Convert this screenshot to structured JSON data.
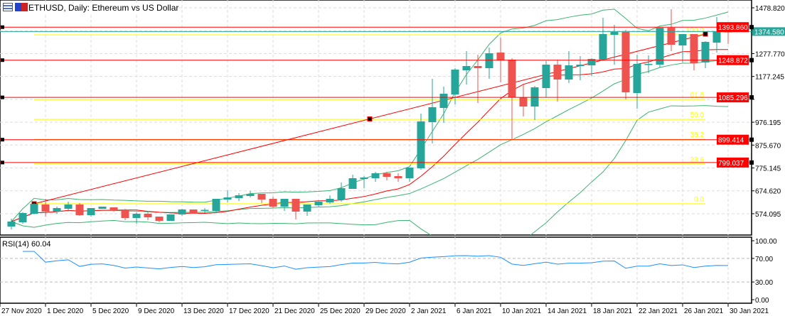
{
  "header": {
    "title": "ETHUSD, Daily:  Ethereum vs US Dollar"
  },
  "colors": {
    "bull": "#26a69a",
    "bear": "#ef5350",
    "hline": "#ff0000",
    "fib": "#ffff00",
    "bands": "#3cb371",
    "ma": "#ff0000",
    "rsi": "#1e90ff",
    "bid": "#26a69a"
  },
  "price_axis": {
    "labels": [
      "1478.820",
      "1277.770",
      "1177.245",
      "976.195",
      "875.670",
      "775.145",
      "674.620",
      "574.095"
    ],
    "grid": [
      1478.82,
      1377.995,
      1277.77,
      1177.245,
      1076.72,
      976.195,
      875.67,
      775.145,
      674.62,
      574.095
    ]
  },
  "horizontal_lines": [
    {
      "price": 1393.86,
      "label": "1393.860"
    },
    {
      "price": 1248.872,
      "label": "1248.872"
    },
    {
      "price": 1085.296,
      "label": "1085.296"
    },
    {
      "price": 899.414,
      "label": "899.414"
    },
    {
      "price": 799.037,
      "label": "799.037"
    }
  ],
  "bid_line": {
    "price": 1374.58,
    "label": "1374.580"
  },
  "fibonacci": {
    "start_bar": 3,
    "end_bar": 62,
    "low": 617.6,
    "high": 1360.0,
    "levels": [
      {
        "ratio": 1.0,
        "label": "100.0"
      },
      {
        "ratio": 0.618,
        "label": "61.8"
      },
      {
        "ratio": 0.5,
        "label": "50.0"
      },
      {
        "ratio": 0.382,
        "label": "38.2"
      },
      {
        "ratio": 0.236,
        "label": "23.6"
      },
      {
        "ratio": 0.0,
        "label": "0.0"
      }
    ]
  },
  "trendline": {
    "start": {
      "bar": 3,
      "price": 617.6
    },
    "end": {
      "bar": 62,
      "price": 1363.4
    }
  },
  "date_axis": {
    "labels": [
      "27 Nov 2020",
      "1 Dec 2020",
      "5 Dec 2020",
      "9 Dec 2020",
      "13 Dec 2020",
      "17 Dec 2020",
      "21 Dec 2020",
      "25 Dec 2020",
      "29 Dec 2020",
      "2 Jan 2021",
      "6 Jan 2021",
      "10 Jan 2021",
      "14 Jan 2021",
      "18 Jan 2021",
      "22 Jan 2021",
      "26 Jan 2021",
      "30 Jan 2021"
    ]
  },
  "rsi": {
    "title": "RSI(14) 60.04",
    "labels": [
      "100.00",
      "70.00",
      "30.00",
      "0.00"
    ],
    "levels": [
      100,
      70,
      30,
      0
    ]
  },
  "chart_data": {
    "type": "candlestick",
    "title": "ETHUSD, Daily: Ethereum vs US Dollar",
    "first_bar": "28 Nov 2020",
    "ylim": [
      574.095,
      1478.82
    ],
    "ohlc": [
      [
        517.8,
        552.1,
        505.3,
        539.7
      ],
      [
        536.5,
        580.2,
        530.3,
        577.1
      ],
      [
        574.0,
        620.8,
        570.9,
        617.6
      ],
      [
        614.5,
        639.5,
        561.5,
        583.3
      ],
      [
        583.3,
        605.2,
        574.0,
        598.9
      ],
      [
        595.8,
        627.0,
        583.3,
        614.5
      ],
      [
        614.5,
        620.8,
        564.6,
        567.7
      ],
      [
        567.7,
        598.9,
        561.5,
        598.9
      ],
      [
        595.8,
        605.2,
        595.8,
        605.2
      ],
      [
        602.1,
        602.1,
        583.3,
        589.6
      ],
      [
        592.7,
        595.8,
        545.9,
        555.3
      ],
      [
        555.3,
        580.2,
        530.3,
        574.0
      ],
      [
        574.0,
        580.2,
        545.9,
        558.4
      ],
      [
        561.5,
        561.5,
        536.5,
        542.8
      ],
      [
        542.8,
        570.9,
        542.8,
        570.9
      ],
      [
        570.9,
        595.8,
        564.6,
        592.7
      ],
      [
        592.7,
        592.7,
        574.0,
        574.0
      ],
      [
        589.6,
        598.9,
        577.1,
        591.0
      ],
      [
        586.5,
        639.5,
        577.1,
        639.5
      ],
      [
        636.4,
        676.9,
        623.9,
        645.7
      ],
      [
        642.6,
        664.5,
        630.1,
        655.1
      ],
      [
        652.0,
        673.8,
        645.7,
        661.3
      ],
      [
        661.3,
        661.3,
        620.8,
        636.4
      ],
      [
        639.5,
        648.9,
        598.9,
        605.2
      ],
      [
        605.2,
        639.5,
        586.5,
        639.5
      ],
      [
        639.5,
        639.5,
        549.0,
        583.3
      ],
      [
        583.3,
        614.5,
        564.6,
        614.5
      ],
      [
        611.4,
        633.2,
        605.2,
        627.0
      ],
      [
        623.9,
        655.1,
        617.6,
        639.5
      ],
      [
        636.4,
        711.3,
        627.0,
        686.3
      ],
      [
        683.2,
        745.6,
        683.2,
        730.0
      ],
      [
        726.9,
        739.4,
        686.3,
        733.1
      ],
      [
        730.0,
        758.1,
        714.4,
        751.9
      ],
      [
        751.9,
        758.1,
        720.6,
        736.2
      ],
      [
        739.4,
        751.9,
        714.4,
        730.0
      ],
      [
        730.0,
        776.8,
        714.4,
        776.8
      ],
      [
        773.7,
        1013.9,
        767.5,
        979.6
      ],
      [
        976.5,
        1166.8,
        882.9,
        1042.0
      ],
      [
        1038.9,
        1132.5,
        973.3,
        1101.3
      ],
      [
        1098.1,
        1213.6,
        1054.5,
        1207.3
      ],
      [
        1204.2,
        1288.5,
        1141.8,
        1222.9
      ],
      [
        1222.9,
        1272.9,
        1060.7,
        1213.6
      ],
      [
        1213.6,
        1304.1,
        1166.8,
        1279.1
      ],
      [
        1282.2,
        1347.8,
        1151.2,
        1247.9
      ],
      [
        1251.0,
        1257.3,
        901.6,
        1085.6
      ],
      [
        1085.6,
        1145.0,
        1001.4,
        1045.1
      ],
      [
        1045.1,
        1135.6,
        985.8,
        1129.3
      ],
      [
        1126.2,
        1244.8,
        1085.6,
        1229.2
      ],
      [
        1229.2,
        1251.0,
        1066.9,
        1163.7
      ],
      [
        1163.7,
        1288.5,
        1148.1,
        1226.1
      ],
      [
        1222.9,
        1266.6,
        1160.5,
        1229.2
      ],
      [
        1226.1,
        1257.3,
        1179.3,
        1254.1
      ],
      [
        1251.0,
        1435.1,
        1251.0,
        1363.4
      ],
      [
        1360.2,
        1403.9,
        1229.2,
        1372.7
      ],
      [
        1372.7,
        1382.1,
        1076.3,
        1107.5
      ],
      [
        1104.4,
        1272.9,
        1035.7,
        1232.3
      ],
      [
        1229.2,
        1269.7,
        1191.7,
        1232.3
      ],
      [
        1229.2,
        1391.4,
        1216.7,
        1391.4
      ],
      [
        1391.4,
        1472.5,
        1288.5,
        1316.6
      ],
      [
        1313.4,
        1363.4,
        1238.5,
        1363.4
      ],
      [
        1363.4,
        1363.4,
        1204.2,
        1235.4
      ],
      [
        1238.5,
        1332.1,
        1213.6,
        1329.0
      ],
      [
        1325.9,
        1438.2,
        1282.2,
        1375.8
      ],
      [
        1375.8,
        1403.9,
        1319.7,
        1372.7
      ]
    ]
  }
}
